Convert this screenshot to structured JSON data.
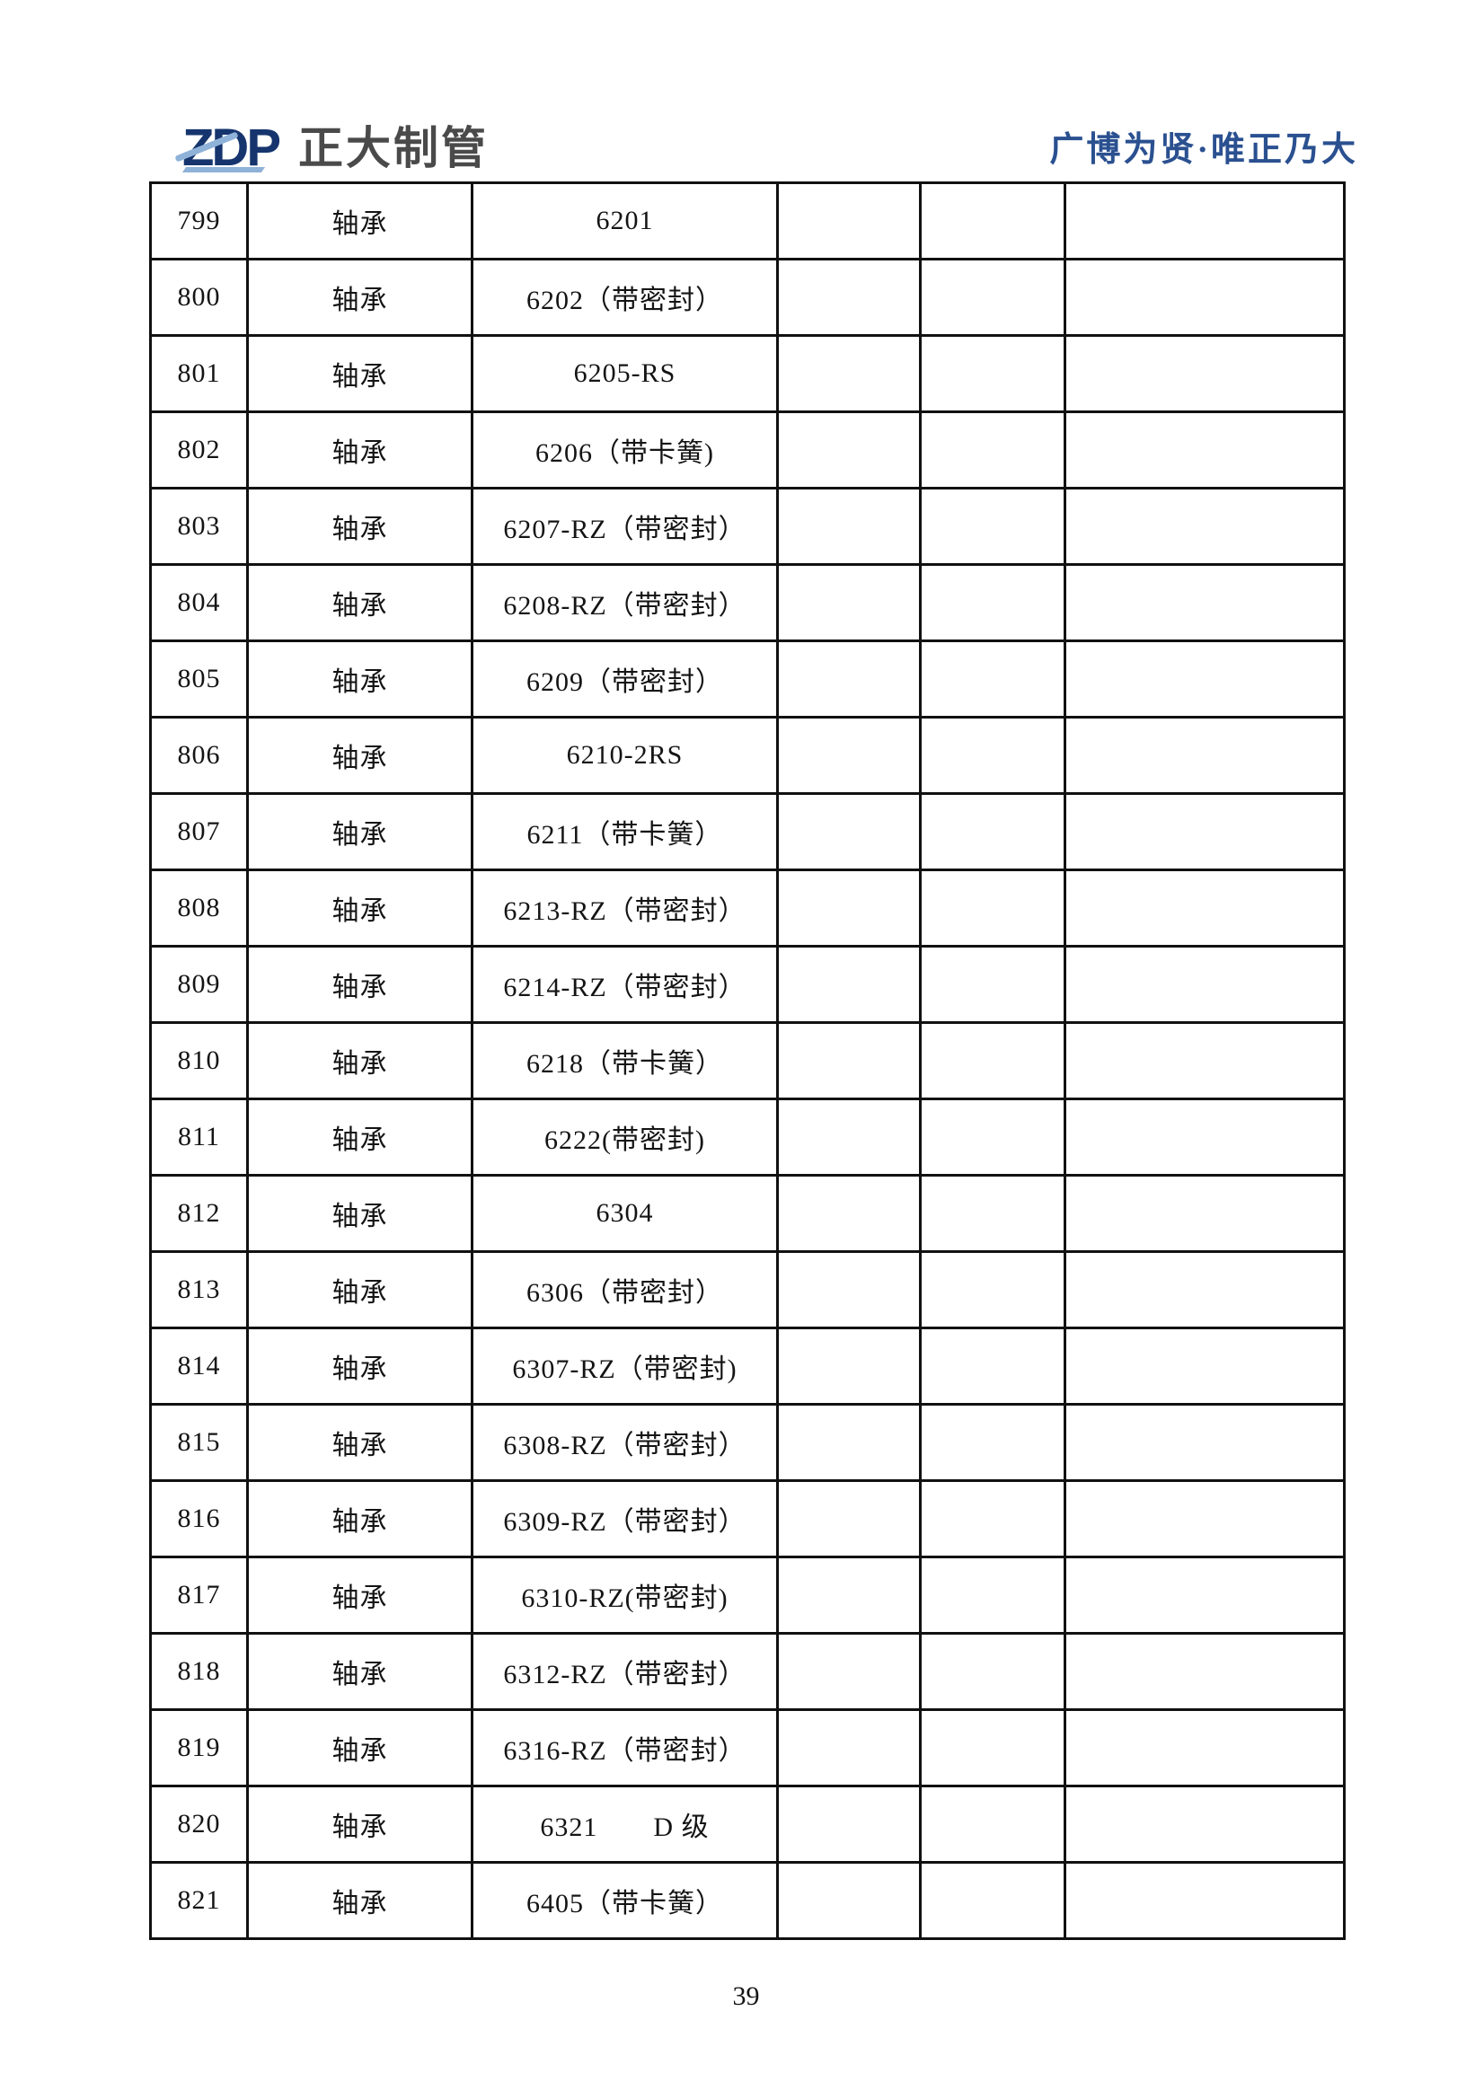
{
  "page": {
    "background": "#ffffff",
    "page_number": "39"
  },
  "header": {
    "logo": {
      "mark": "ZDP",
      "company": "正大制管",
      "mark_color": "#16356e",
      "accent_color": "#8fb2d8",
      "company_color": "#4a4a4a"
    },
    "motto": {
      "text": "广博为贤·唯正乃大",
      "color": "#2a5090"
    }
  },
  "table": {
    "border_color": "#111111",
    "rows": [
      {
        "index": "799",
        "name": "轴承",
        "model": "6201"
      },
      {
        "index": "800",
        "name": "轴承",
        "model": "6202（带密封）"
      },
      {
        "index": "801",
        "name": "轴承",
        "model": "6205-RS"
      },
      {
        "index": "802",
        "name": "轴承",
        "model": "6206（带卡簧)"
      },
      {
        "index": "803",
        "name": "轴承",
        "model": "6207-RZ（带密封）"
      },
      {
        "index": "804",
        "name": "轴承",
        "model": "6208-RZ（带密封）"
      },
      {
        "index": "805",
        "name": "轴承",
        "model": "6209（带密封）"
      },
      {
        "index": "806",
        "name": "轴承",
        "model": "6210-2RS"
      },
      {
        "index": "807",
        "name": "轴承",
        "model": "6211（带卡簧）"
      },
      {
        "index": "808",
        "name": "轴承",
        "model": "6213-RZ（带密封）"
      },
      {
        "index": "809",
        "name": "轴承",
        "model": "6214-RZ（带密封）"
      },
      {
        "index": "810",
        "name": "轴承",
        "model": "6218（带卡簧）"
      },
      {
        "index": "811",
        "name": "轴承",
        "model": "6222(带密封)"
      },
      {
        "index": "812",
        "name": "轴承",
        "model": "6304"
      },
      {
        "index": "813",
        "name": "轴承",
        "model": "6306（带密封）"
      },
      {
        "index": "814",
        "name": "轴承",
        "model": "6307-RZ（带密封)"
      },
      {
        "index": "815",
        "name": "轴承",
        "model": "6308-RZ（带密封）"
      },
      {
        "index": "816",
        "name": "轴承",
        "model": "6309-RZ（带密封）"
      },
      {
        "index": "817",
        "name": "轴承",
        "model": "6310-RZ(带密封)"
      },
      {
        "index": "818",
        "name": "轴承",
        "model": "6312-RZ（带密封）"
      },
      {
        "index": "819",
        "name": "轴承",
        "model": "6316-RZ（带密封）"
      },
      {
        "index": "820",
        "name": "轴承",
        "model": "6321　　D 级"
      },
      {
        "index": "821",
        "name": "轴承",
        "model": "6405（带卡簧）"
      }
    ]
  }
}
